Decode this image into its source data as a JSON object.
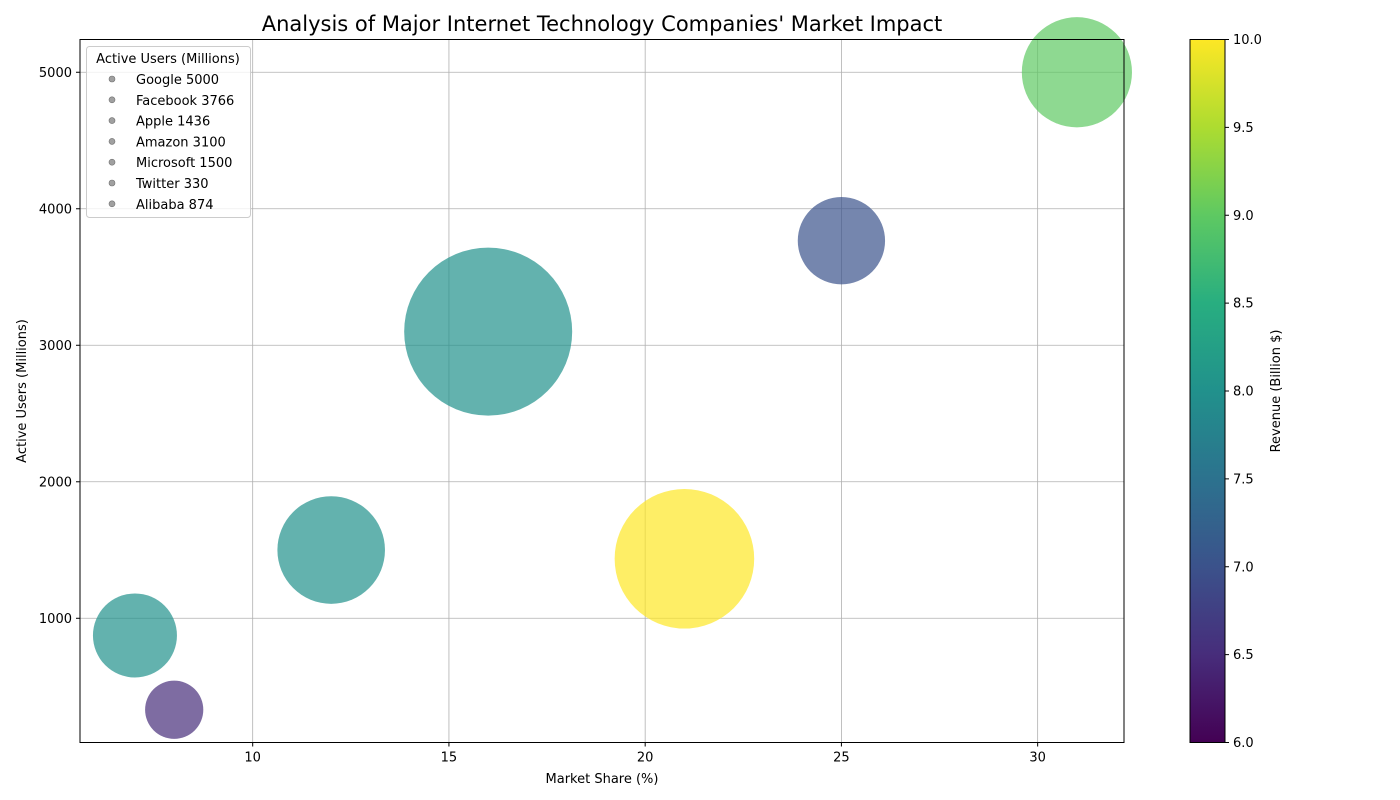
{
  "chart_data": {
    "type": "scatter",
    "title": "Analysis of Major Internet Technology Companies' Market Impact",
    "xlabel": "Market Share (%)",
    "ylabel": "Active Users (Millions)",
    "xlim": [
      5.6,
      32.2
    ],
    "ylim": [
      90,
      5240
    ],
    "xticks": [
      10,
      15,
      20,
      25,
      30
    ],
    "yticks": [
      1000,
      2000,
      3000,
      4000,
      5000
    ],
    "grid": true,
    "legend": {
      "title": "Active Users (Millions)",
      "placement": "upper-left",
      "entries": [
        "Google 5000",
        "Facebook 3766",
        "Apple 1436",
        "Amazon 3100",
        "Microsoft 1500",
        "Twitter 330",
        "Alibaba 874"
      ],
      "marker_color": "#a0a0a0"
    },
    "colorbar": {
      "label": "Revenue (Billion $)",
      "colormap": "viridis",
      "range": [
        6.0,
        10.0
      ],
      "ticks": [
        "6.0",
        "6.5",
        "7.0",
        "7.5",
        "8.0",
        "8.5",
        "9.0",
        "9.5",
        "10.0"
      ]
    },
    "points": [
      {
        "name": "Google",
        "market_share": 31,
        "active_users": 5000,
        "revenue": 9.0,
        "size": 0.43
      },
      {
        "name": "Facebook",
        "market_share": 25,
        "active_users": 3766,
        "revenue": 7.0,
        "size": 0.27
      },
      {
        "name": "Apple",
        "market_share": 21,
        "active_users": 1436,
        "revenue": 10.0,
        "size": 0.69
      },
      {
        "name": "Amazon",
        "market_share": 16,
        "active_users": 3100,
        "revenue": 8.0,
        "size": 1.0
      },
      {
        "name": "Microsoft",
        "market_share": 12,
        "active_users": 1500,
        "revenue": 8.0,
        "size": 0.41
      },
      {
        "name": "Twitter",
        "market_share": 8,
        "active_users": 330,
        "revenue": 6.5,
        "size": 0.12
      },
      {
        "name": "Alibaba",
        "market_share": 7,
        "active_users": 874,
        "revenue": 8.0,
        "size": 0.25
      }
    ],
    "marker_alpha": 0.7
  }
}
